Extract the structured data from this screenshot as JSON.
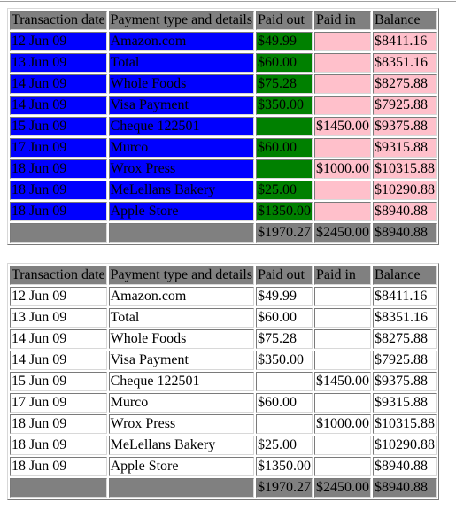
{
  "headers": [
    "Transaction date",
    "Payment type and details",
    "Paid out",
    "Paid in",
    "Balance"
  ],
  "rows": [
    [
      "12 Jun 09",
      "Amazon.com",
      "$49.99",
      "",
      "$8411.16"
    ],
    [
      "13 Jun 09",
      "Total",
      "$60.00",
      "",
      "$8351.16"
    ],
    [
      "14 Jun 09",
      "Whole Foods",
      "$75.28",
      "",
      "$8275.88"
    ],
    [
      "14 Jun 09",
      "Visa Payment",
      "$350.00",
      "",
      "$7925.88"
    ],
    [
      "15 Jun 09",
      "Cheque 122501",
      "",
      "$1450.00",
      "$9375.88"
    ],
    [
      "17 Jun 09",
      "Murco",
      "$60.00",
      "",
      "$9315.88"
    ],
    [
      "18 Jun 09",
      "Wrox Press",
      "",
      "$1000.00",
      "$10315.88"
    ],
    [
      "18 Jun 09",
      "MeLellans Bakery",
      "$25.00",
      "",
      "$10290.88"
    ],
    [
      "18 Jun 09",
      "Apple Store",
      "$1350.00",
      "",
      "$8940.88"
    ]
  ],
  "totals": [
    "",
    "",
    "$1970.27",
    "$2450.00",
    "$8940.88"
  ],
  "colors": {
    "header_bg": "#808080",
    "date_payment_bg": "#0000ff",
    "paid_out_bg": "#008000",
    "paid_in_balance_bg": "#ffc0cb"
  }
}
